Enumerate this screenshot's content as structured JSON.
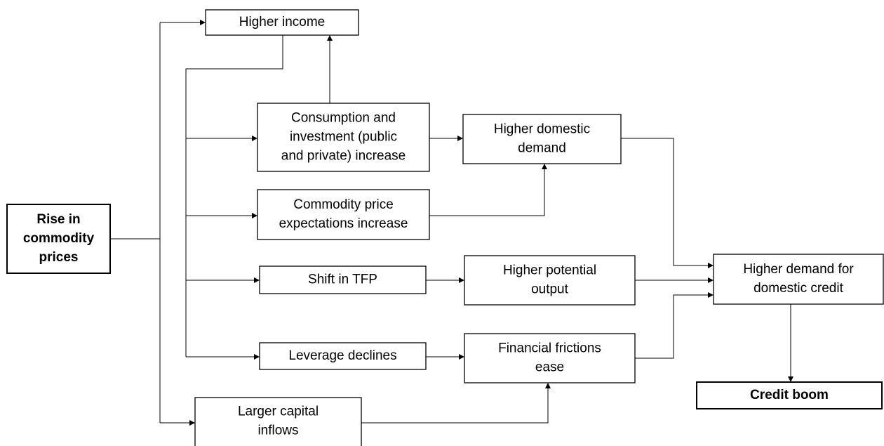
{
  "nodes": [
    {
      "lines": [
        "Rise in",
        "commodity",
        "prices"
      ]
    },
    {
      "lines": [
        "Higher income"
      ]
    },
    {
      "lines": [
        "Consumption and",
        "investment (public",
        "and private) increase"
      ]
    },
    {
      "lines": [
        "Higher domestic",
        "demand"
      ]
    },
    {
      "lines": [
        "Commodity price",
        "expectations  increase"
      ]
    },
    {
      "lines": [
        "Shift in TFP"
      ]
    },
    {
      "lines": [
        "Higher potential",
        "output"
      ]
    },
    {
      "lines": [
        "Leverage declines"
      ]
    },
    {
      "lines": [
        "Financial frictions",
        "ease"
      ]
    },
    {
      "lines": [
        "Larger capital",
        "inflows"
      ]
    },
    {
      "lines": [
        "Higher demand for",
        "domestic credit"
      ]
    },
    {
      "lines": [
        "Credit boom"
      ]
    }
  ]
}
